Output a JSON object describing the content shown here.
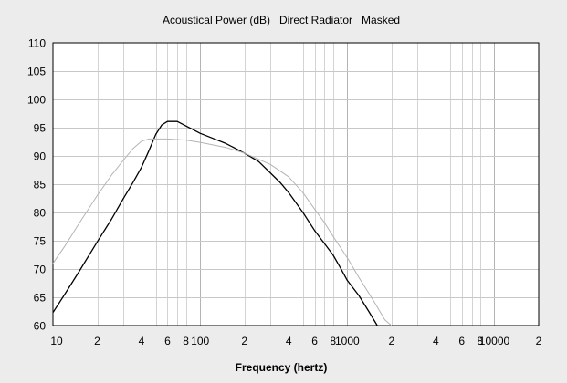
{
  "chart_data": {
    "type": "line",
    "title": "Acoustical Power (dB)   Direct Radiator   Masked",
    "xlabel": "Frequency (hertz)",
    "ylabel": "",
    "x_scale": "log",
    "xlim": [
      10,
      20000
    ],
    "ylim": [
      60,
      110
    ],
    "grid": true,
    "legend": "none",
    "x_tick_labels": [
      {
        "value": 10,
        "label": "10"
      },
      {
        "value": 20,
        "label": "2"
      },
      {
        "value": 40,
        "label": "4"
      },
      {
        "value": 60,
        "label": "6"
      },
      {
        "value": 80,
        "label": "8"
      },
      {
        "value": 100,
        "label": "100"
      },
      {
        "value": 200,
        "label": "2"
      },
      {
        "value": 400,
        "label": "4"
      },
      {
        "value": 600,
        "label": "6"
      },
      {
        "value": 800,
        "label": "8"
      },
      {
        "value": 1000,
        "label": "1000"
      },
      {
        "value": 2000,
        "label": "2"
      },
      {
        "value": 4000,
        "label": "4"
      },
      {
        "value": 6000,
        "label": "6"
      },
      {
        "value": 8000,
        "label": "8"
      },
      {
        "value": 10000,
        "label": "10000"
      },
      {
        "value": 20000,
        "label": "2"
      }
    ],
    "y_ticks": [
      60,
      65,
      70,
      75,
      80,
      85,
      90,
      95,
      100,
      105,
      110
    ],
    "series": [
      {
        "color": "#000000",
        "points": [
          [
            10,
            62.3
          ],
          [
            12,
            65.5
          ],
          [
            15,
            69.5
          ],
          [
            20,
            74.8
          ],
          [
            25,
            78.8
          ],
          [
            30,
            82.4
          ],
          [
            35,
            85.3
          ],
          [
            40,
            88.0
          ],
          [
            45,
            91.0
          ],
          [
            50,
            93.8
          ],
          [
            55,
            95.5
          ],
          [
            60,
            96.1
          ],
          [
            70,
            96.1
          ],
          [
            80,
            95.3
          ],
          [
            100,
            94.0
          ],
          [
            120,
            93.2
          ],
          [
            150,
            92.2
          ],
          [
            200,
            90.5
          ],
          [
            250,
            89.0
          ],
          [
            300,
            87.0
          ],
          [
            350,
            85.3
          ],
          [
            400,
            83.5
          ],
          [
            500,
            80.0
          ],
          [
            600,
            76.8
          ],
          [
            700,
            74.5
          ],
          [
            800,
            72.5
          ],
          [
            900,
            70.2
          ],
          [
            1000,
            68.0
          ],
          [
            1200,
            65.3
          ],
          [
            1400,
            62.5
          ],
          [
            1600,
            60.0
          ]
        ]
      },
      {
        "color": "#b4b4b4",
        "points": [
          [
            10,
            71.0
          ],
          [
            12,
            74.0
          ],
          [
            15,
            78.0
          ],
          [
            20,
            83.0
          ],
          [
            25,
            86.6
          ],
          [
            30,
            89.2
          ],
          [
            35,
            91.3
          ],
          [
            40,
            92.6
          ],
          [
            45,
            93.0
          ],
          [
            50,
            93.0
          ],
          [
            60,
            93.0
          ],
          [
            80,
            92.8
          ],
          [
            100,
            92.4
          ],
          [
            150,
            91.5
          ],
          [
            200,
            90.5
          ],
          [
            300,
            88.5
          ],
          [
            400,
            86.3
          ],
          [
            500,
            83.5
          ],
          [
            600,
            80.6
          ],
          [
            700,
            78.2
          ],
          [
            800,
            75.8
          ],
          [
            1000,
            72.0
          ],
          [
            1200,
            68.5
          ],
          [
            1500,
            64.5
          ],
          [
            1800,
            61.0
          ],
          [
            2000,
            60.0
          ]
        ]
      }
    ]
  }
}
